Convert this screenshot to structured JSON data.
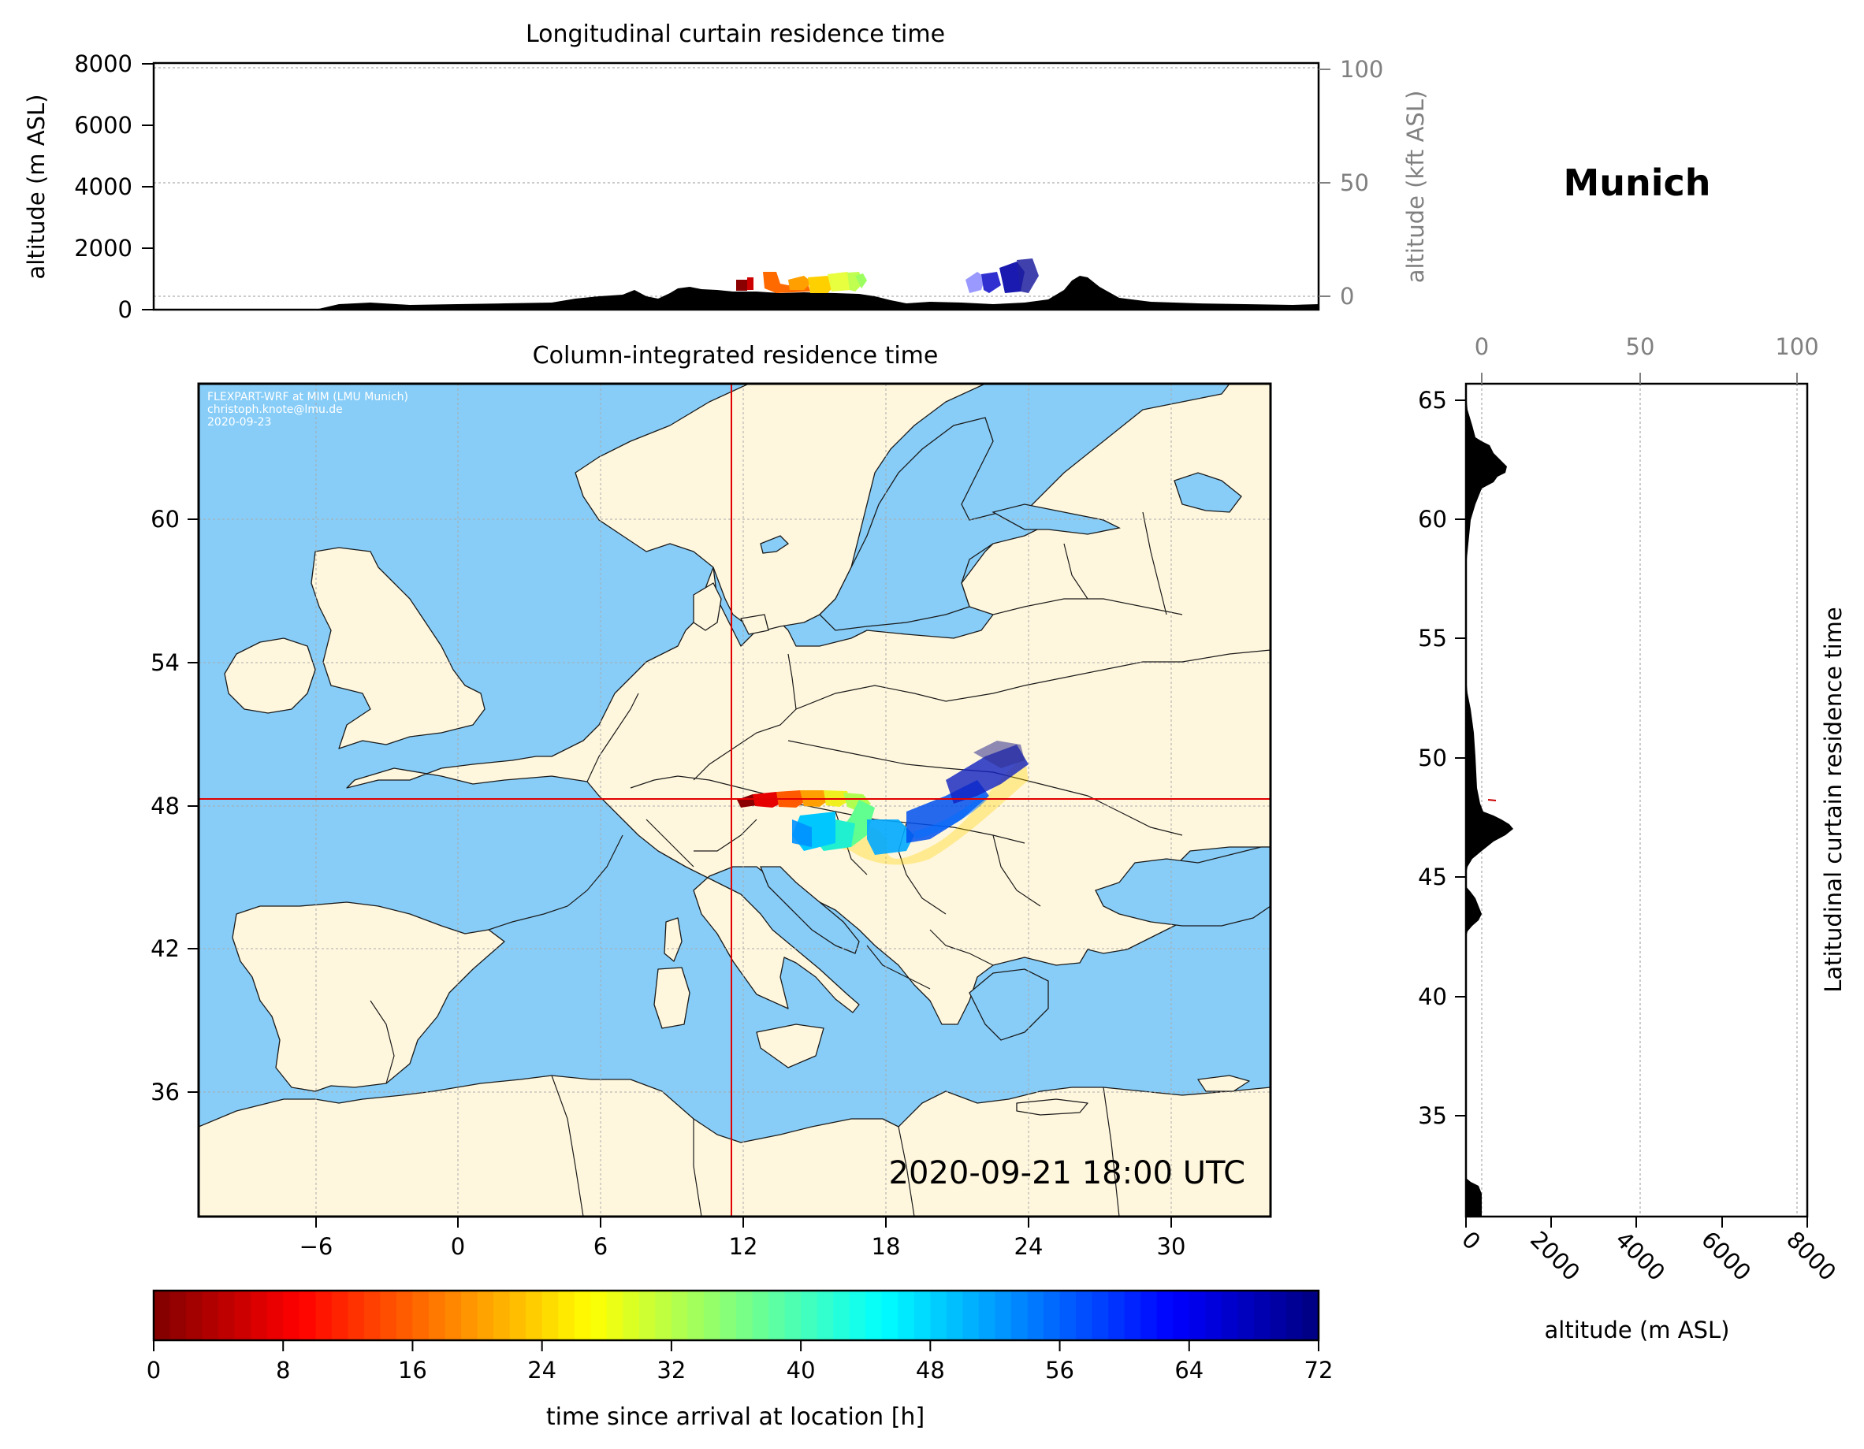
{
  "site": {
    "name": "Munich",
    "lat": 48.14,
    "lon": 11.58
  },
  "top_panel": {
    "title": "Longitudinal curtain residence time",
    "ylabel_left": "altitude (m ASL)",
    "ylabel_right": "altitude (kft ASL)",
    "yticks_left": [
      "0",
      "2000",
      "4000",
      "6000",
      "8000"
    ],
    "yticks_right": [
      "0",
      "50",
      "100"
    ]
  },
  "map_panel": {
    "title": "Column-integrated residence time",
    "credit_lines": [
      "FLEXPART-WRF at MIM (LMU Munich)",
      "christoph.knote@lmu.de",
      "2020-09-23"
    ],
    "timestamp": "2020-09-21 18:00 UTC",
    "xticks": [
      "−6",
      "0",
      "6",
      "12",
      "18",
      "24",
      "30"
    ],
    "yticks": [
      "36",
      "42",
      "48",
      "54",
      "60"
    ],
    "colors": {
      "ocean": "#87cdf8",
      "land": "#fff7dd",
      "border": "#1a1a1a",
      "crosshair": "#e00000"
    }
  },
  "right_panel": {
    "ylabel": "Latitudinal curtain residence time",
    "xlabel": "altitude (m ASL)",
    "xticks_bottom": [
      "0",
      "2000",
      "4000",
      "6000",
      "8000"
    ],
    "xticks_top": [
      "0",
      "50",
      "100"
    ],
    "yticks": [
      "35",
      "40",
      "45",
      "50",
      "55",
      "60",
      "65"
    ]
  },
  "colorbar": {
    "label": "time since arrival at location [h]",
    "ticks": [
      "0",
      "8",
      "16",
      "24",
      "32",
      "40",
      "48",
      "56",
      "64",
      "72"
    ],
    "colormap": "jet"
  }
}
